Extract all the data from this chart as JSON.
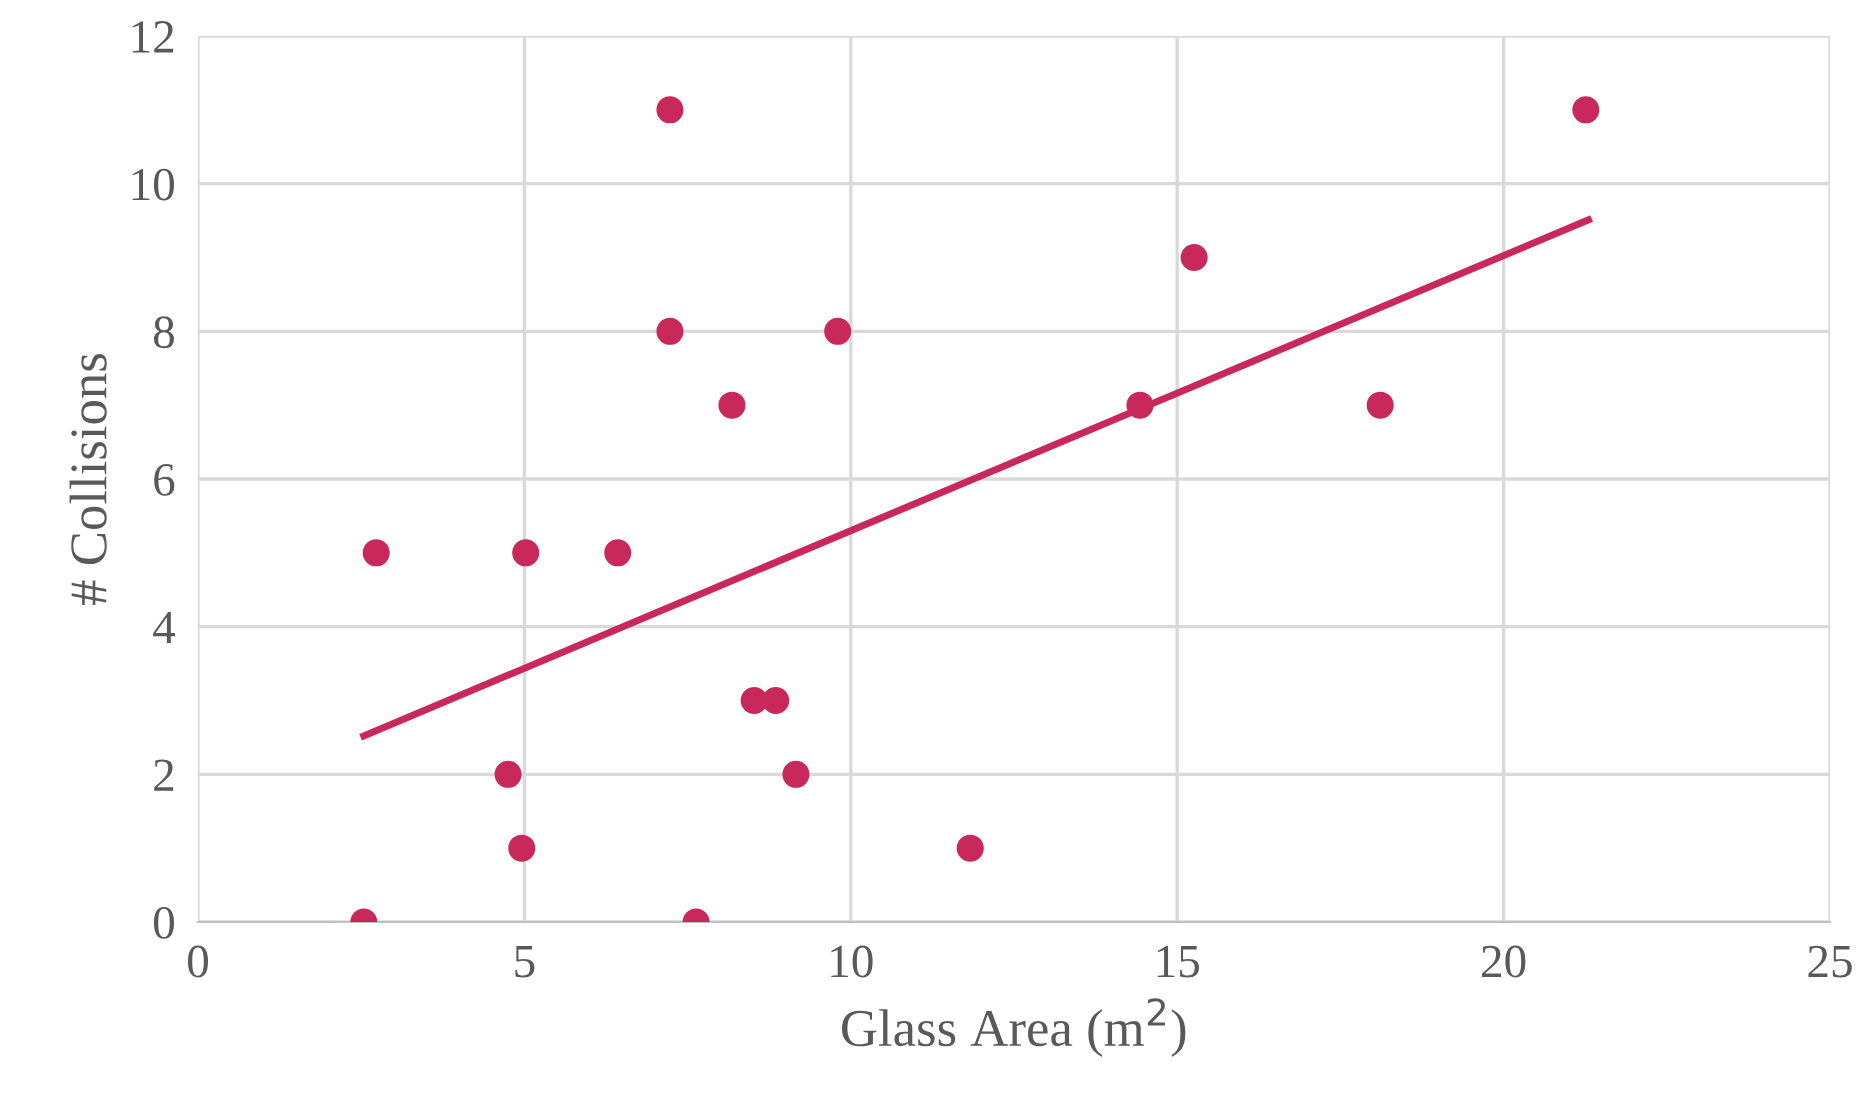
{
  "chart_data": {
    "type": "scatter",
    "xlabel": "Glass Area (m$^{2}$)",
    "ylabel": "# Collisions",
    "xlim": [
      0,
      25
    ],
    "xticks": [
      0,
      5,
      10,
      15,
      20,
      25
    ],
    "ylim": [
      0,
      12
    ],
    "yticks": [
      0,
      2,
      4,
      6,
      8,
      10,
      12
    ],
    "grid": true,
    "series": [
      {
        "marker": "circle",
        "color": "#c8285a",
        "x": [
          2.54,
          2.73,
          4.75,
          4.96,
          5.02,
          6.43,
          7.23,
          7.23,
          7.63,
          8.18,
          8.52,
          8.85,
          9.16,
          9.8,
          11.83,
          14.43,
          15.26,
          18.11,
          21.26
        ],
        "values": [
          0,
          5,
          2,
          1,
          5,
          5,
          11,
          8,
          0,
          7,
          3,
          3,
          2,
          8,
          1,
          7,
          9,
          7,
          11
        ]
      },
      {
        "type": "line",
        "marker": "none",
        "color": "#c8285a",
        "x": [
          2.54,
          21.3
        ],
        "values": [
          2.52,
          9.51
        ]
      }
    ]
  }
}
